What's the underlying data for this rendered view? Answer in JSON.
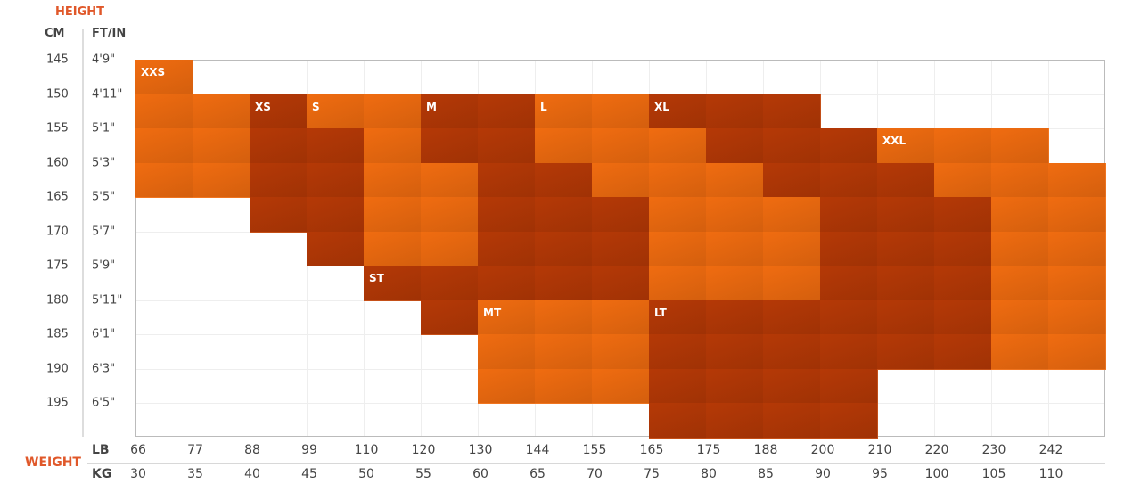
{
  "chart_data": {
    "type": "heatmap",
    "title": "",
    "ylabel": "HEIGHT",
    "xlabel": "WEIGHT",
    "y_headers": [
      "CM",
      "FT/IN"
    ],
    "y_cm": [
      "145",
      "150",
      "155",
      "160",
      "165",
      "170",
      "175",
      "180",
      "185",
      "190",
      "195"
    ],
    "y_ftin": [
      "4'9\"",
      "4'11\"",
      "5'1\"",
      "5'3\"",
      "5'5\"",
      "5'7\"",
      "5'9\"",
      "5'11\"",
      "6'1\"",
      "6'3\"",
      "6'5\""
    ],
    "x_units": [
      "LB",
      "KG"
    ],
    "x_lb": [
      "66",
      "77",
      "88",
      "99",
      "110",
      "120",
      "130",
      "144",
      "155",
      "165",
      "175",
      "188",
      "200",
      "210",
      "220",
      "230",
      "242"
    ],
    "x_kg": [
      "30",
      "35",
      "40",
      "45",
      "50",
      "55",
      "60",
      "65",
      "70",
      "75",
      "80",
      "85",
      "90",
      "95",
      "100",
      "105",
      "110"
    ],
    "sizes": [
      "XXS",
      "XS",
      "S",
      "M",
      "L",
      "XL",
      "XXL",
      "ST",
      "MT",
      "LT"
    ],
    "size_colors": {
      "XXS": "#ec6a10",
      "XS": "#b23806",
      "S": "#ec6a10",
      "M": "#b23806",
      "L": "#ec6a10",
      "XL": "#b23806",
      "XXL": "#ec6a10",
      "ST": "#b23806",
      "MT": "#ec6a10",
      "LT": "#b23806"
    },
    "cells": [
      [
        "XXS",
        "",
        "",
        "",
        "",
        "",
        "",
        "",
        "",
        "",
        "",
        "",
        "",
        "",
        "",
        "",
        ""
      ],
      [
        "XXS",
        "XXS",
        "XS",
        "S",
        "S",
        "M",
        "M",
        "L",
        "L",
        "XL",
        "XL",
        "XL",
        "",
        "",
        "",
        "",
        ""
      ],
      [
        "XXS",
        "XXS",
        "XS",
        "XS",
        "S",
        "M",
        "M",
        "L",
        "L",
        "L",
        "XL",
        "XL",
        "XL",
        "XXL",
        "XXL",
        "XXL",
        ""
      ],
      [
        "XXS",
        "XXS",
        "XS",
        "XS",
        "S",
        "S",
        "M",
        "M",
        "L",
        "L",
        "L",
        "XL",
        "XL",
        "XL",
        "XXL",
        "XXL",
        "XXL"
      ],
      [
        "",
        "",
        "XS",
        "XS",
        "S",
        "S",
        "M",
        "M",
        "M",
        "L",
        "L",
        "L",
        "XL",
        "XL",
        "XL",
        "XXL",
        "XXL"
      ],
      [
        "",
        "",
        "",
        "XS",
        "S",
        "S",
        "M",
        "M",
        "M",
        "L",
        "L",
        "L",
        "XL",
        "XL",
        "XL",
        "XXL",
        "XXL"
      ],
      [
        "",
        "",
        "",
        "",
        "ST",
        "ST",
        "M",
        "M",
        "M",
        "L",
        "L",
        "L",
        "XL",
        "XL",
        "XL",
        "XXL",
        "XXL"
      ],
      [
        "",
        "",
        "",
        "",
        "",
        "ST",
        "MT",
        "MT",
        "MT",
        "LT",
        "LT",
        "LT",
        "XL",
        "XL",
        "XL",
        "XXL",
        "XXL"
      ],
      [
        "",
        "",
        "",
        "",
        "",
        "",
        "MT",
        "MT",
        "MT",
        "LT",
        "LT",
        "LT",
        "XL",
        "XL",
        "XL",
        "XXL",
        "XXL"
      ],
      [
        "",
        "",
        "",
        "",
        "",
        "",
        "MT",
        "MT",
        "MT",
        "LT",
        "LT",
        "LT",
        "LT",
        "",
        "",
        "",
        ""
      ],
      [
        "",
        "",
        "",
        "",
        "",
        "",
        "",
        "",
        "",
        "LT",
        "LT",
        "LT",
        "LT",
        "",
        "",
        "",
        ""
      ]
    ],
    "grid": true
  }
}
